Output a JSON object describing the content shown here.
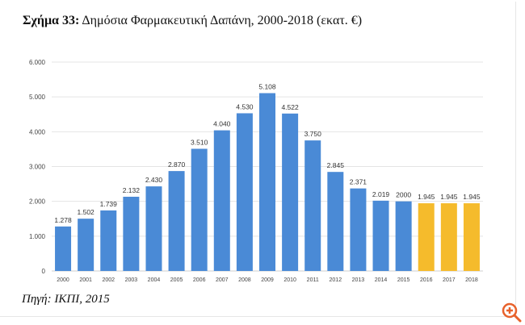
{
  "chart_data": {
    "type": "bar",
    "title_prefix": "Σχήμα 33:",
    "title": "Δημόσια Φαρμακευτική Δαπάνη, 2000-2018 (εκατ. €)",
    "categories": [
      "2000",
      "2001",
      "2002",
      "2003",
      "2004",
      "2005",
      "2006",
      "2007",
      "2008",
      "2009",
      "2010",
      "2011",
      "2012",
      "2013",
      "2014",
      "2015",
      "2016",
      "2017",
      "2018"
    ],
    "values": [
      1278,
      1502,
      1739,
      2132,
      2430,
      2870,
      3510,
      4040,
      4530,
      5108,
      4522,
      3750,
      2845,
      2371,
      2019,
      2000,
      1945,
      1945,
      1945
    ],
    "data_labels": [
      "1.278",
      "1.502",
      "1.739",
      "2.132",
      "2.430",
      "2.870",
      "3.510",
      "4.040",
      "4.530",
      "5.108",
      "4.522",
      "3.750",
      "2.845",
      "2.371",
      "2.019",
      "2000",
      "1.945",
      "1.945",
      "1.945"
    ],
    "ylim": [
      0,
      6000
    ],
    "yticks": [
      0,
      1000,
      2000,
      3000,
      4000,
      5000,
      6000
    ],
    "ytick_labels": [
      "0",
      "1.000",
      "2.000",
      "3.000",
      "4.000",
      "5.000",
      "6.000"
    ],
    "grid": true,
    "colors": {
      "actual": "#4a8ad6",
      "projected": "#f5bb2c"
    },
    "projected_from": "2016",
    "source": "Πηγή: ΙΚΠΙ, 2015"
  },
  "zoom_icon": {
    "name": "zoom-in-icon",
    "color": "#e8622c"
  }
}
